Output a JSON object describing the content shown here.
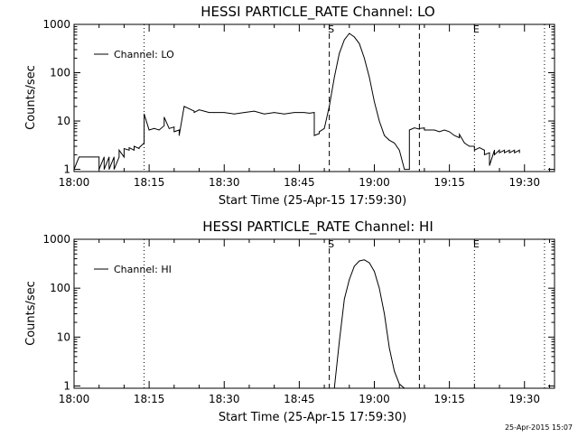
{
  "footer": {
    "timestamp": "25-Apr-2015 15:07"
  },
  "chart_data": [
    {
      "type": "line",
      "title": "HESSI PARTICLE_RATE Channel: LO",
      "xlabel": "Start Time (25-Apr-15 17:59:30)",
      "ylabel": "Counts/sec",
      "yscale": "log",
      "ylim": [
        0.9,
        1000
      ],
      "xlim_minutes_after_1800": [
        0,
        96
      ],
      "x_tick_labels": [
        "18:00",
        "18:15",
        "18:30",
        "18:45",
        "19:00",
        "19:15",
        "19:30"
      ],
      "y_tick_labels": [
        "1",
        "10",
        "100",
        "1000"
      ],
      "legend": {
        "entries": [
          "Channel: LO"
        ],
        "position": "top-left"
      },
      "markers": [
        {
          "label": "",
          "x": "18:14",
          "style": "dotted"
        },
        {
          "label": "S",
          "x": "18:51",
          "style": "dashed"
        },
        {
          "label": "",
          "x": "19:09",
          "style": "dashed"
        },
        {
          "label": "E",
          "x": "19:20",
          "style": "dotted"
        },
        {
          "label": "",
          "x": "19:34",
          "style": "dotted"
        }
      ],
      "series": [
        {
          "name": "Channel: LO",
          "x": [
            "18:00",
            "18:00",
            "18:01",
            "18:01",
            "18:03",
            "18:05",
            "18:05",
            "18:06",
            "18:06",
            "18:07",
            "18:07",
            "18:08",
            "18:08",
            "18:09",
            "18:09",
            "18:10",
            "18:10",
            "18:11",
            "18:11",
            "18:12",
            "18:12",
            "18:13",
            "18:13",
            "18:14",
            "18:14",
            "18:14",
            "18:15",
            "18:15",
            "18:16",
            "18:17",
            "18:18",
            "18:18",
            "18:19",
            "18:19",
            "18:20",
            "18:20",
            "18:21",
            "18:21",
            "18:22",
            "18:23",
            "18:24",
            "18:24",
            "18:25",
            "18:26",
            "18:27",
            "18:28",
            "18:30",
            "18:32",
            "18:34",
            "18:36",
            "18:38",
            "18:40",
            "18:42",
            "18:44",
            "18:46",
            "18:47",
            "18:48",
            "18:48",
            "18:49",
            "18:49",
            "18:50",
            "18:51",
            "18:52",
            "18:53",
            "18:54",
            "18:55",
            "18:56",
            "18:57",
            "18:58",
            "18:59",
            "19:00",
            "19:01",
            "19:02",
            "19:03",
            "19:04",
            "19:05",
            "19:06",
            "19:07",
            "19:07",
            "19:08",
            "19:09",
            "19:09",
            "19:10",
            "19:10",
            "19:11",
            "19:12",
            "19:13",
            "19:14",
            "19:15",
            "19:16",
            "19:17",
            "19:17",
            "19:18",
            "19:19",
            "19:20",
            "19:20",
            "19:21",
            "19:22",
            "19:22",
            "19:23",
            "19:23",
            "19:24",
            "19:24",
            "19:25",
            "19:25",
            "19:26",
            "19:26",
            "19:27",
            "19:27",
            "19:28",
            "19:28",
            "19:29",
            "19:29"
          ],
          "y": [
            2.5,
            1,
            1.8,
            1.8,
            1.8,
            1.8,
            1,
            1.8,
            1,
            1.8,
            1,
            1.8,
            1,
            1.8,
            2.5,
            1.8,
            2.7,
            2.5,
            2.8,
            2.5,
            3,
            2.7,
            2.8,
            3.5,
            5,
            14,
            6.5,
            6.5,
            7,
            6.5,
            8,
            12,
            7,
            7,
            7.5,
            6,
            6.5,
            5,
            20,
            18,
            16,
            15,
            17,
            16,
            15,
            15,
            15,
            14,
            15,
            16,
            14,
            15,
            14,
            15,
            15,
            14.5,
            15,
            5,
            5.5,
            6,
            7,
            20,
            80,
            250,
            480,
            650,
            550,
            400,
            200,
            80,
            25,
            10,
            5,
            4,
            3.5,
            2.5,
            1,
            1,
            6.5,
            7.2,
            6.8,
            7,
            7.2,
            6.5,
            6.5,
            6.5,
            6,
            6.5,
            6,
            5,
            4.5,
            5.3,
            3.5,
            3,
            3,
            2.5,
            2.8,
            2.5,
            2,
            2.2,
            1.2,
            2.5,
            2,
            2.5,
            2.2,
            2.5,
            2.2,
            2.5,
            2.2,
            2.5,
            2.2,
            2.5,
            2.2
          ]
        }
      ]
    },
    {
      "type": "line",
      "title": "HESSI PARTICLE_RATE Channel: HI",
      "xlabel": "Start Time (25-Apr-15 17:59:30)",
      "ylabel": "Counts/sec",
      "yscale": "log",
      "ylim": [
        0.9,
        1000
      ],
      "xlim_minutes_after_1800": [
        0,
        96
      ],
      "x_tick_labels": [
        "18:00",
        "18:15",
        "18:30",
        "18:45",
        "19:00",
        "19:15",
        "19:30"
      ],
      "y_tick_labels": [
        "1",
        "10",
        "100",
        "1000"
      ],
      "legend": {
        "entries": [
          "Channel: HI"
        ],
        "position": "top-left"
      },
      "markers": [
        {
          "label": "",
          "x": "18:14",
          "style": "dotted"
        },
        {
          "label": "S",
          "x": "18:51",
          "style": "dashed"
        },
        {
          "label": "",
          "x": "19:09",
          "style": "dashed"
        },
        {
          "label": "E",
          "x": "19:20",
          "style": "dotted"
        },
        {
          "label": "",
          "x": "19:34",
          "style": "dotted"
        }
      ],
      "series": [
        {
          "name": "Channel: HI",
          "x": [
            "18:52",
            "18:53",
            "18:54",
            "18:55",
            "18:56",
            "18:57",
            "18:58",
            "18:59",
            "19:00",
            "19:01",
            "19:02",
            "19:03",
            "19:04",
            "19:05",
            "19:06"
          ],
          "y": [
            0.9,
            8,
            60,
            150,
            280,
            360,
            380,
            330,
            220,
            100,
            30,
            6,
            2,
            1.1,
            0.9
          ]
        }
      ]
    }
  ]
}
